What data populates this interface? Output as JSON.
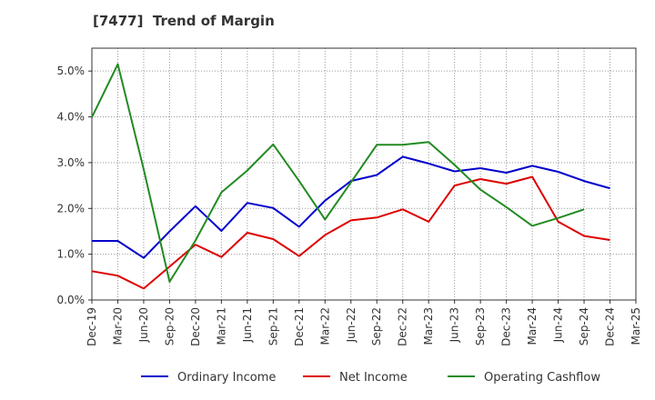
{
  "chart_data": {
    "type": "line",
    "title": "[7477]  Trend of Margin",
    "xlabel": "",
    "ylabel": "",
    "categories": [
      "Dec-19",
      "Mar-20",
      "Jun-20",
      "Sep-20",
      "Dec-20",
      "Mar-21",
      "Jun-21",
      "Sep-21",
      "Dec-21",
      "Mar-22",
      "Jun-22",
      "Sep-22",
      "Dec-22",
      "Mar-23",
      "Jun-23",
      "Sep-23",
      "Dec-23",
      "Mar-24",
      "Jun-24",
      "Sep-24",
      "Dec-24",
      "Mar-25"
    ],
    "ylim": [
      0,
      5.5
    ],
    "yticks": [
      "0.0%",
      "1.0%",
      "2.0%",
      "3.0%",
      "4.0%",
      "5.0%"
    ],
    "ytick_values": [
      0,
      1,
      2,
      3,
      4,
      5
    ],
    "grid": true,
    "legend_position": "bottom",
    "series": [
      {
        "name": "Ordinary Income",
        "color": "#0000cc",
        "values": [
          1.29,
          1.29,
          0.92,
          1.5,
          2.05,
          1.51,
          2.12,
          2.01,
          1.6,
          2.17,
          2.6,
          2.73,
          3.13,
          2.98,
          2.81,
          2.88,
          2.78,
          2.93,
          2.8,
          2.6,
          2.44,
          null
        ]
      },
      {
        "name": "Net Income",
        "color": "#dd0000",
        "values": [
          0.63,
          0.53,
          0.25,
          0.73,
          1.21,
          0.94,
          1.47,
          1.33,
          0.96,
          1.42,
          1.74,
          1.8,
          1.98,
          1.71,
          2.5,
          2.64,
          2.54,
          2.69,
          1.71,
          1.4,
          1.31,
          null
        ]
      },
      {
        "name": "Operating Cashflow",
        "color": "#228b22",
        "values": [
          3.99,
          5.15,
          2.85,
          0.4,
          1.3,
          2.35,
          2.83,
          3.4,
          2.6,
          1.76,
          2.57,
          3.39,
          3.39,
          3.45,
          2.95,
          2.41,
          2.03,
          1.62,
          1.79,
          1.98,
          null,
          null
        ]
      }
    ]
  }
}
